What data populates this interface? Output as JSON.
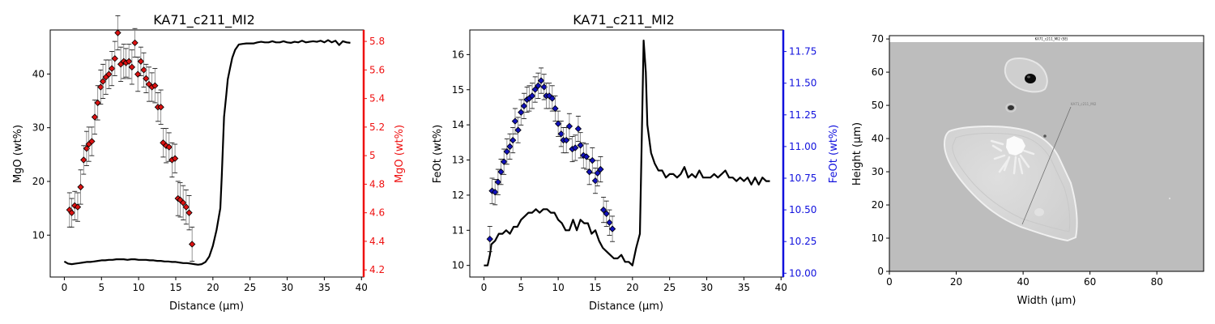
{
  "chart_data": [
    {
      "type": "line",
      "title": "KA71_c211_MI2",
      "xlabel": "Distance (µm)",
      "ylabel": "MgO (wt%)",
      "y2label": "MgO (wt%)",
      "xlim": [
        -1.9,
        40.3
      ],
      "ylim": [
        2.2,
        48.2
      ],
      "y2lim": [
        4.15,
        5.88
      ],
      "xticks": [
        0,
        5,
        10,
        15,
        20,
        25,
        30,
        35,
        40
      ],
      "yticks": [
        10,
        20,
        30,
        40
      ],
      "y2ticks": [
        4.2,
        4.4,
        4.6,
        4.8,
        5.0,
        5.2,
        5.4,
        5.6,
        5.8
      ],
      "colors": {
        "line": "#000000",
        "points": "#dd1111",
        "axis2": "#ee1111"
      },
      "series": [
        {
          "axis": "left",
          "x": [
            0,
            0.5,
            1,
            1.5,
            2,
            2.5,
            3,
            3.5,
            4,
            4.5,
            5,
            5.5,
            6,
            6.5,
            7,
            7.5,
            8,
            8.5,
            9,
            9.5,
            10,
            10.5,
            11,
            11.5,
            12,
            12.5,
            13,
            13.5,
            14,
            14.5,
            15,
            15.5,
            16,
            16.5,
            17,
            17.5,
            18,
            18.5,
            19,
            19.5,
            20,
            20.5,
            21,
            21.2,
            21.5,
            21.8,
            22,
            22.3,
            22.6,
            23,
            23.5,
            24,
            24.5,
            25,
            25.5,
            26,
            26.5,
            27,
            27.5,
            28,
            28.5,
            29,
            29.5,
            30,
            30.5,
            31,
            31.5,
            32,
            32.5,
            33,
            33.5,
            34,
            34.5,
            35,
            35.5,
            36,
            36.5,
            37,
            37.5,
            38,
            38.5
          ],
          "y": [
            5.1,
            4.7,
            4.6,
            4.7,
            4.8,
            4.9,
            5,
            5,
            5.1,
            5.2,
            5.3,
            5.3,
            5.4,
            5.4,
            5.5,
            5.5,
            5.5,
            5.4,
            5.5,
            5.5,
            5.4,
            5.4,
            5.4,
            5.3,
            5.3,
            5.2,
            5.2,
            5.1,
            5.1,
            5,
            5,
            4.9,
            4.8,
            4.8,
            4.7,
            4.6,
            4.5,
            4.6,
            5,
            6,
            8,
            11,
            15,
            21,
            32,
            36,
            39,
            41,
            43,
            44.5,
            45.5,
            45.6,
            45.7,
            45.7,
            45.7,
            45.9,
            46,
            45.9,
            45.9,
            46.1,
            45.9,
            45.9,
            46.1,
            45.9,
            45.8,
            46,
            45.9,
            46.2,
            45.9,
            46,
            46.1,
            46,
            46.2,
            45.9,
            46.3,
            45.9,
            46.2,
            45.4,
            46.1,
            45.9,
            45.8
          ]
        },
        {
          "axis": "right",
          "x": [
            0.7,
            1.0,
            1.4,
            1.8,
            2.2,
            2.6,
            3.0,
            3.3,
            3.7,
            4.1,
            4.5,
            4.9,
            5.2,
            5.6,
            6.0,
            6.4,
            6.8,
            7.2,
            7.6,
            8.0,
            8.3,
            8.7,
            9.1,
            9.5,
            9.9,
            10.3,
            10.7,
            11.0,
            11.4,
            11.8,
            12.2,
            12.6,
            13.0,
            13.3,
            13.7,
            14.1,
            14.5,
            14.9,
            15.3,
            15.6,
            16.0,
            16.4,
            16.8,
            17.2
          ],
          "y": [
            4.62,
            4.6,
            4.65,
            4.64,
            4.78,
            4.97,
            5.05,
            5.08,
            5.1,
            5.27,
            5.37,
            5.48,
            5.52,
            5.55,
            5.57,
            5.61,
            5.68,
            5.86,
            5.64,
            5.66,
            5.65,
            5.66,
            5.62,
            5.79,
            5.57,
            5.66,
            5.6,
            5.54,
            5.5,
            5.48,
            5.49,
            5.34,
            5.34,
            5.09,
            5.07,
            5.06,
            4.97,
            4.98,
            4.7,
            4.69,
            4.67,
            4.64,
            4.6,
            4.38
          ],
          "err": [
            0.12,
            0.1,
            0.1,
            0.1,
            0.12,
            0.1,
            0.12,
            0.12,
            0.1,
            0.12,
            0.12,
            0.12,
            0.12,
            0.12,
            0.1,
            0.12,
            0.12,
            0.12,
            0.12,
            0.12,
            0.1,
            0.12,
            0.12,
            0.1,
            0.12,
            0.1,
            0.12,
            0.1,
            0.12,
            0.1,
            0.12,
            0.1,
            0.12,
            0.1,
            0.12,
            0.1,
            0.12,
            0.1,
            0.12,
            0.12,
            0.12,
            0.12,
            0.12,
            0.12
          ]
        }
      ]
    },
    {
      "type": "line",
      "title": "KA71_c211_MI2",
      "xlabel": "Distance (µm)",
      "ylabel": "FeOt (wt%)",
      "y2label": "FeOt (wt%)",
      "xlim": [
        -1.9,
        40.3
      ],
      "ylim": [
        9.67,
        16.7
      ],
      "y2lim": [
        9.97,
        11.92
      ],
      "xticks": [
        0,
        5,
        10,
        15,
        20,
        25,
        30,
        35,
        40
      ],
      "yticks": [
        10,
        11,
        12,
        13,
        14,
        15,
        16
      ],
      "y2ticks": [
        10.0,
        10.25,
        10.5,
        10.75,
        11.0,
        11.25,
        11.5,
        11.75
      ],
      "y2ticklabels": [
        "10.00",
        "10.25",
        "10.50",
        "10.75",
        "11.00",
        "11.25",
        "11.50",
        "11.75"
      ],
      "colors": {
        "line": "#000000",
        "points": "#1111bb",
        "axis2": "#1111dd"
      },
      "series": [
        {
          "axis": "left",
          "x": [
            0,
            0.5,
            0.8,
            1,
            1.5,
            2,
            2.5,
            3,
            3.5,
            4,
            4.5,
            5,
            5.5,
            6,
            6.5,
            7,
            7.5,
            8,
            8.5,
            9,
            9.5,
            10,
            10.5,
            11,
            11.5,
            12,
            12.5,
            13,
            13.5,
            14,
            14.5,
            15,
            15.5,
            16,
            16.5,
            17,
            17.5,
            18,
            18.5,
            19,
            19.5,
            20,
            20.5,
            21,
            21.2,
            21.5,
            21.8,
            22,
            22.5,
            23,
            23.5,
            24,
            24.5,
            25,
            25.5,
            26,
            26.5,
            27,
            27.5,
            28,
            28.5,
            29,
            29.5,
            30,
            30.5,
            31,
            31.5,
            32,
            32.5,
            33,
            33.5,
            34,
            34.5,
            35,
            35.5,
            36,
            36.5,
            37,
            37.5,
            38,
            38.5
          ],
          "y": [
            10,
            10,
            10.3,
            10.6,
            10.7,
            10.9,
            10.9,
            11,
            10.9,
            11.1,
            11.1,
            11.3,
            11.4,
            11.5,
            11.5,
            11.6,
            11.5,
            11.6,
            11.6,
            11.5,
            11.5,
            11.3,
            11.2,
            11,
            11,
            11.3,
            11,
            11.3,
            11.2,
            11.2,
            10.9,
            11,
            10.7,
            10.5,
            10.4,
            10.3,
            10.2,
            10.2,
            10.3,
            10.1,
            10.1,
            10,
            10.5,
            10.9,
            13,
            16.4,
            15.5,
            14,
            13.2,
            12.9,
            12.7,
            12.7,
            12.5,
            12.6,
            12.6,
            12.5,
            12.6,
            12.8,
            12.5,
            12.6,
            12.5,
            12.7,
            12.5,
            12.5,
            12.5,
            12.6,
            12.5,
            12.6,
            12.7,
            12.5,
            12.5,
            12.4,
            12.5,
            12.4,
            12.5,
            12.3,
            12.5,
            12.3,
            12.5,
            12.4,
            12.4
          ]
        },
        {
          "axis": "right",
          "x": [
            0.8,
            1.1,
            1.5,
            1.9,
            2.3,
            2.7,
            3.1,
            3.5,
            3.9,
            4.2,
            4.6,
            5.0,
            5.4,
            5.8,
            6.1,
            6.5,
            6.9,
            7.3,
            7.7,
            8.1,
            8.4,
            8.8,
            9.2,
            9.6,
            10.0,
            10.4,
            10.7,
            11.1,
            11.5,
            11.9,
            12.3,
            12.7,
            13.0,
            13.4,
            13.8,
            14.2,
            14.6,
            15.0,
            15.3,
            15.7,
            16.1,
            16.5,
            16.9,
            17.3
          ],
          "y": [
            10.27,
            10.65,
            10.64,
            10.72,
            10.8,
            10.88,
            10.96,
            11.0,
            11.05,
            11.2,
            11.13,
            11.27,
            11.32,
            11.37,
            11.38,
            11.4,
            11.45,
            11.48,
            11.52,
            11.47,
            11.4,
            11.4,
            11.38,
            11.3,
            11.18,
            11.1,
            11.05,
            11.05,
            11.16,
            10.98,
            10.99,
            11.14,
            11.01,
            10.93,
            10.92,
            10.8,
            10.89,
            10.73,
            10.79,
            10.82,
            10.5,
            10.47,
            10.4,
            10.35
          ],
          "err": [
            0.1,
            0.1,
            0.1,
            0.1,
            0.1,
            0.1,
            0.1,
            0.1,
            0.1,
            0.1,
            0.1,
            0.1,
            0.1,
            0.1,
            0.1,
            0.1,
            0.1,
            0.1,
            0.1,
            0.1,
            0.1,
            0.1,
            0.1,
            0.1,
            0.1,
            0.1,
            0.1,
            0.1,
            0.1,
            0.1,
            0.1,
            0.1,
            0.1,
            0.1,
            0.1,
            0.1,
            0.1,
            0.1,
            0.1,
            0.1,
            0.1,
            0.1,
            0.1,
            0.1
          ]
        }
      ]
    },
    {
      "type": "image",
      "xlabel": "Width (µm)",
      "ylabel": "Height (µm)",
      "xlim": [
        0,
        94
      ],
      "ylim": [
        0,
        71
      ],
      "xticks": [
        0,
        20,
        40,
        60,
        80
      ],
      "yticks": [
        0,
        10,
        20,
        30,
        40,
        50,
        60,
        70
      ],
      "header_text": "KA71_c211_MI2 (SE)",
      "label_text": "KA71_c211_MI2",
      "colors": {
        "background": "#bdbdbd",
        "crystal": "#d9d9d9",
        "inclusion": "#f4f4f4"
      }
    }
  ]
}
